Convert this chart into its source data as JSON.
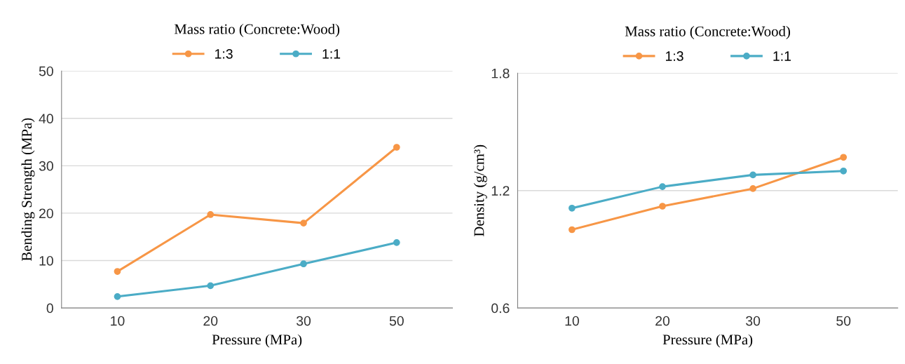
{
  "chart_data": [
    {
      "type": "line",
      "xlabel": "Pressure (MPa)",
      "ylabel": "Bending Strength (MPa)",
      "legend_title": "Mass ratio (Concrete:Wood)",
      "legend": "top",
      "marker": "circle",
      "grid": "y",
      "categories": [
        "10",
        "20",
        "30",
        "50"
      ],
      "ylim": [
        0,
        50
      ],
      "yticks": [
        0,
        10,
        20,
        30,
        40,
        50
      ],
      "series": [
        {
          "name": "1:3",
          "color": "#f79646",
          "values": [
            7.7,
            19.7,
            17.9,
            33.9
          ]
        },
        {
          "name": "1:1",
          "color": "#4bacc6",
          "values": [
            2.4,
            4.7,
            9.3,
            13.8
          ]
        }
      ]
    },
    {
      "type": "line",
      "xlabel": "Pressure (MPa)",
      "ylabel": "Density (g/cm³)",
      "legend_title": "Mass ratio (Concrete:Wood)",
      "legend": "top",
      "marker": "circle",
      "grid": "y",
      "categories": [
        "10",
        "20",
        "30",
        "50"
      ],
      "ylim": [
        0.6,
        1.8
      ],
      "yticks": [
        0.6,
        1.2,
        1.8
      ],
      "series": [
        {
          "name": "1:3",
          "color": "#f79646",
          "values": [
            1.0,
            1.12,
            1.21,
            1.37
          ]
        },
        {
          "name": "1:1",
          "color": "#4bacc6",
          "values": [
            1.11,
            1.22,
            1.28,
            1.3
          ]
        }
      ]
    }
  ]
}
